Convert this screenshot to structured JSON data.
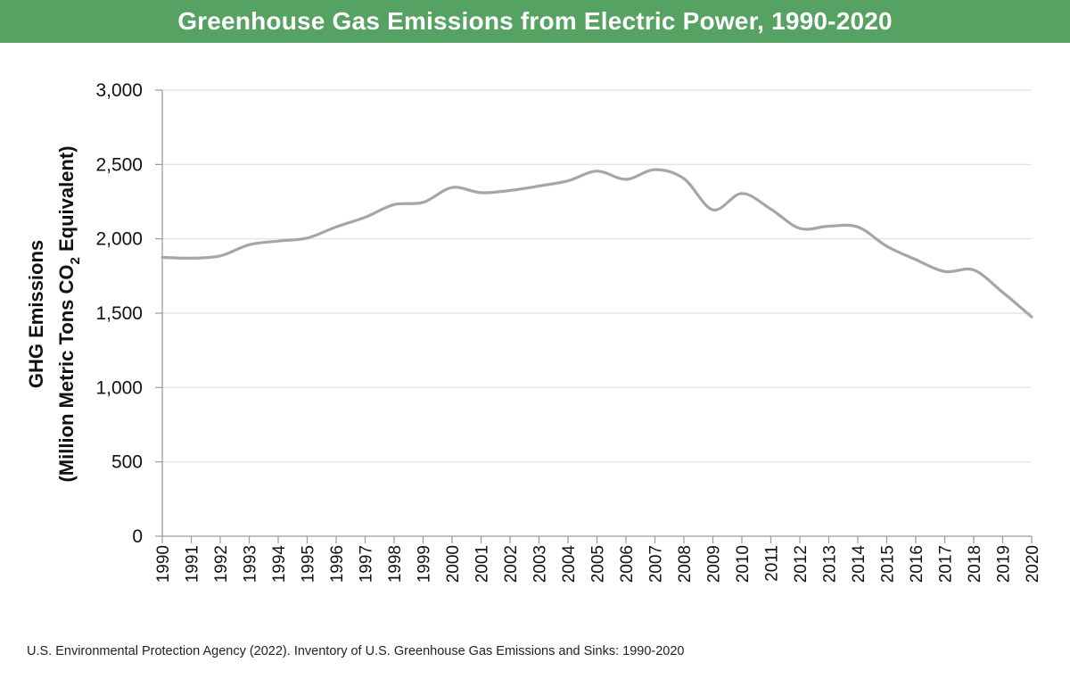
{
  "title": "Greenhouse Gas Emissions from Electric Power, 1990-2020",
  "source": "U.S. Environmental Protection Agency (2022). Inventory of U.S. Greenhouse Gas Emissions and Sinks: 1990-2020",
  "colors": {
    "title_bg": "#55a262",
    "line": "#a6a6a6",
    "grid": "#d5e3ee",
    "axis": "#9a9a9a"
  },
  "chart_data": {
    "type": "line",
    "title": "Greenhouse Gas Emissions from Electric Power, 1990-2020",
    "ylabel_line1": "GHG Emissions",
    "ylabel_line2_pre": "(Million Metric Tons CO",
    "ylabel_sub": "2",
    "ylabel_line2_post": " Equivalent)",
    "xlabel": "",
    "ylim": [
      0,
      3000
    ],
    "yticks": [
      0,
      500,
      1000,
      1500,
      2000,
      2500,
      3000
    ],
    "ytick_labels": [
      "0",
      "500",
      "1,000",
      "1,500",
      "2,000",
      "2,500",
      "3,000"
    ],
    "grid": true,
    "x": [
      "1990",
      "1991",
      "1992",
      "1993",
      "1994",
      "1995",
      "1996",
      "1997",
      "1998",
      "1999",
      "2000",
      "2001",
      "2002",
      "2003",
      "2004",
      "2005",
      "2006",
      "2007",
      "2008",
      "2009",
      "2010",
      "2011",
      "2012",
      "2013",
      "2014",
      "2015",
      "2016",
      "2017",
      "2018",
      "2019",
      "2020"
    ],
    "series": [
      {
        "name": "",
        "values": [
          1875,
          1870,
          1885,
          1960,
          1985,
          2005,
          2080,
          2145,
          2230,
          2245,
          2345,
          2310,
          2325,
          2355,
          2390,
          2455,
          2400,
          2465,
          2405,
          2195,
          2305,
          2200,
          2070,
          2085,
          2080,
          1950,
          1860,
          1780,
          1790,
          1640,
          1475
        ]
      }
    ]
  }
}
